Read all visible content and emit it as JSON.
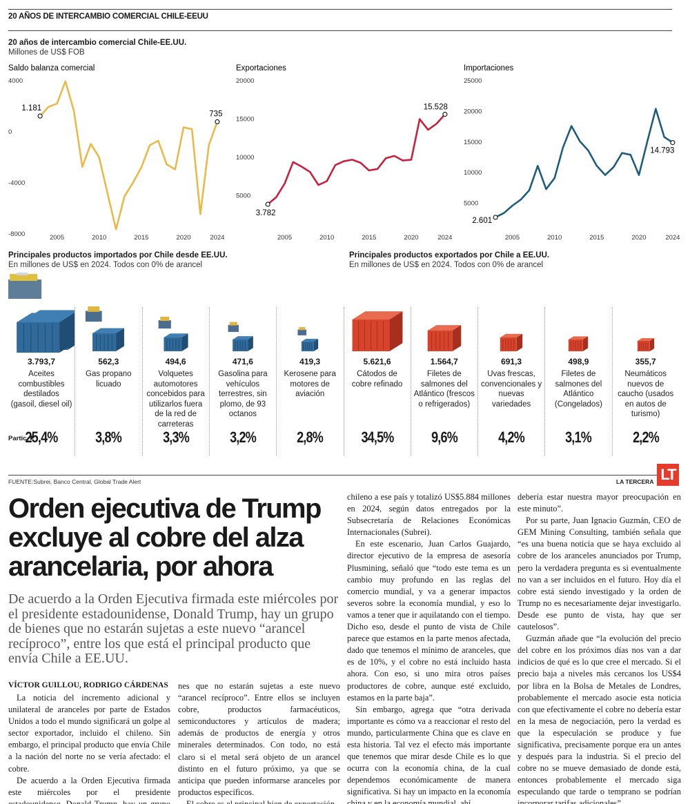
{
  "header": {
    "section": "20 AÑOS DE INTERCAMBIO COMERCIAL CHILE-EEUU",
    "title": "20 años de intercambio comercial Chile-EE.UU.",
    "subtitle": "Millones de US$ FOB"
  },
  "chart_data": [
    {
      "type": "line",
      "title": "Saldo balanza comercial",
      "x": [
        2003,
        2004,
        2005,
        2006,
        2007,
        2008,
        2009,
        2010,
        2011,
        2012,
        2013,
        2014,
        2015,
        2016,
        2017,
        2018,
        2019,
        2020,
        2021,
        2022,
        2023,
        2024
      ],
      "series": [
        {
          "color": "#e9b949",
          "values": [
            1181,
            1900,
            2150,
            3900,
            1600,
            -2800,
            -1000,
            -2050,
            -4900,
            -7700,
            -5100,
            -4050,
            -2850,
            -1100,
            -750,
            -2600,
            -3000,
            300,
            150,
            -6500,
            -1100,
            735
          ],
          "value_labels": [
            "1.181",
            null,
            null,
            null,
            null,
            null,
            null,
            null,
            null,
            null,
            null,
            null,
            null,
            null,
            null,
            null,
            null,
            null,
            null,
            null,
            null,
            "735"
          ]
        }
      ],
      "xlim": [
        2002.5,
        2024.5
      ],
      "xticks": [
        2005,
        2010,
        2015,
        2020,
        2024
      ],
      "ylim": [
        -8000,
        4000
      ],
      "yticks": [
        -8000,
        -4000,
        0,
        4000
      ]
    },
    {
      "type": "line",
      "title": "Exportaciones",
      "x": [
        2003,
        2004,
        2005,
        2006,
        2007,
        2008,
        2009,
        2010,
        2011,
        2012,
        2013,
        2014,
        2015,
        2016,
        2017,
        2018,
        2019,
        2020,
        2021,
        2022,
        2023,
        2024
      ],
      "series": [
        {
          "color": "#c8203f",
          "values": [
            3782,
            4700,
            6500,
            9300,
            8700,
            8000,
            6300,
            6800,
            8900,
            9400,
            9600,
            9200,
            8200,
            8400,
            9800,
            10100,
            9500,
            9600,
            14900,
            13500,
            14300,
            15528
          ],
          "value_labels": [
            "3.782",
            null,
            null,
            null,
            null,
            null,
            null,
            null,
            null,
            null,
            null,
            null,
            null,
            null,
            null,
            null,
            null,
            null,
            null,
            null,
            null,
            "15.528"
          ]
        }
      ],
      "xlim": [
        2002.5,
        2024.5
      ],
      "xticks": [
        2005,
        2010,
        2015,
        2020,
        2024
      ],
      "ylim": [
        0,
        20000
      ],
      "yticks": [
        5000,
        10000,
        15000,
        20000
      ]
    },
    {
      "type": "line",
      "title": "Importaciones",
      "x": [
        2003,
        2004,
        2005,
        2006,
        2007,
        2008,
        2009,
        2010,
        2011,
        2012,
        2013,
        2014,
        2015,
        2016,
        2017,
        2018,
        2019,
        2020,
        2021,
        2022,
        2023,
        2024
      ],
      "series": [
        {
          "color": "#1d5c7a",
          "values": [
            2601,
            3300,
            4500,
            5500,
            7000,
            11000,
            7200,
            9000,
            14000,
            17500,
            15000,
            13500,
            11000,
            9500,
            10800,
            13100,
            12800,
            9500,
            15000,
            20300,
            15700,
            14793
          ],
          "value_labels": [
            "2.601",
            null,
            null,
            null,
            null,
            null,
            null,
            null,
            null,
            null,
            null,
            null,
            null,
            null,
            null,
            null,
            null,
            null,
            null,
            null,
            null,
            "14.793"
          ]
        }
      ],
      "xlim": [
        2002.5,
        2024.5
      ],
      "xticks": [
        2005,
        2010,
        2015,
        2020,
        2024
      ],
      "ylim": [
        0,
        25000
      ],
      "yticks": [
        5000,
        10000,
        15000,
        20000,
        25000
      ]
    }
  ],
  "imports": {
    "title": "Principales productos importados por Chile desde EE.UU.",
    "subtitle": "En millones de US$ en 2024. Todos con 0% de arancel",
    "items": [
      {
        "value": "3.793,7",
        "name": "Aceites combustibles destilados (gasoil, diesel oil)",
        "share": "25,4%"
      },
      {
        "value": "562,3",
        "name": "Gas propano licuado",
        "share": "3,8%"
      },
      {
        "value": "494,6",
        "name": "Volquetes automotores concebidos para utilizarlos fuera de la red de carreteras",
        "share": "3,3%"
      },
      {
        "value": "471,6",
        "name": "Gasolina para vehículos terrestres, sin plomo, de 93 octanos",
        "share": "3,2%"
      },
      {
        "value": "419,3",
        "name": "Kerosene para motores de aviación",
        "share": "2,8%"
      }
    ]
  },
  "exports": {
    "title": "Principales productos exportados por Chile a EE.UU.",
    "subtitle": "En millones de US$ en 2024. Todos con 0% de arancel",
    "items": [
      {
        "value": "5.621,6",
        "name": "Cátodos de cobre refinado",
        "share": "34,5%"
      },
      {
        "value": "1.564,7",
        "name": "Filetes de salmones del Atlántico (frescos o refrigerados)",
        "share": "9,6%"
      },
      {
        "value": "691,3",
        "name": "Uvas frescas, convencionales y nuevas variedades",
        "share": "4,2%"
      },
      {
        "value": "498,9",
        "name": "Filetes de salmones del Atlántico (Congelados)",
        "share": "3,1%"
      },
      {
        "value": "355,7",
        "name": "Neumáticos nuevos de caucho (usados en autos de turismo)",
        "share": "2,2%"
      }
    ]
  },
  "partic_label": "Partic.",
  "footer": {
    "source": "FUENTE:Subrei, Banco Central, Global Trade Alert",
    "brand": "LA TERCERA",
    "logo": "LT"
  },
  "article": {
    "headline": "Orden ejecutiva de Trump excluye al cobre del alza arancelaria, por ahora",
    "lede": "De acuerdo a la Orden Ejecutiva firmada este miércoles por el presidente estadounidense, Donald Trump, hay un grupo de bienes que no estarán sujetas a este nuevo “arancel recíproco”, entre los que está el principal producto que envía Chile a EE.UU.",
    "byline": "VÍCTOR GUILLOU, RODRIGO CÁRDENAS",
    "columns": [
      [
        "La noticia del incremento adicional y unilateral de aranceles por parte de Estados Unidos a todo el mundo significará un golpe al sector exportador, incluido el chileno. Sin embargo, el principal producto que envía Chile a la nación del norte no se vería afectado: el cobre.",
        "De acuerdo a la Orden Ejecutiva firmada este miércoles por el presidente estadounidense, Donald Trump, hay un grupo de bie-"
      ],
      [
        "nes que no estarán sujetas a este nuevo “arancel recíproco”. Entre ellos se incluyen cobre, productos farmacéuticos, semiconductores y artículos de madera; además de productos de energía y otros minerales determinados. Con todo, no está claro si el metal será objeto de un arancel distinto en el futuro próximo, ya que se anticipa que pueden informarse aranceles por productos específicos.",
        "El cobre es el principal bien de exportación"
      ],
      [
        "chileno a ese país y totalizó US$5.884 millones en 2024, según datos entregados por la Subsecretaría de Relaciones Económicas Internacionales (Subrei).",
        "En este escenario, Juan Carlos Guajardo, director ejecutivo de la empresa de asesoría Plusmining, señaló que “todo este tema es un cambio muy profundo en las reglas del comercio mundial, y va a generar impactos severos sobre la economía mundial, y eso lo vamos a tener que ir aquilatando con el tiempo. Dicho eso, desde el punto de vista de Chile parece que estamos en la parte menos afectada, dado que tenemos el mínimo de aranceles, que es de 10%, y el cobre no está incluido hasta ahora. Con eso, si uno mira otros países productores de cobre, aunque esté excluido, estamos en la parte baja”.",
        "Sin embargo, agrega que “otra derivada importante es cómo va a reaccionar el resto del mundo, particularmente China que es clave en esta historia. Tal vez el efecto más importante que tenemos que mirar desde Chile es lo que ocurra con la economía china, de la cual dependemos económicamente de manera significativa. Si hay un impacto en la economía china y en la economía mundial, ahí"
      ],
      [
        "debería estar nuestra mayor preocupación en este minuto”.",
        "Por su parte, Juan Ignacio Guzmán, CEO de GEM Mining Consulting, también señala que “es una buena noticia que se haya excluido al cobre de los aranceles anunciados por Trump, pero la verdadera pregunta es si eventualmente no van a ser incluidos en el futuro. Hoy día el cobre está siendo investigado y la orden de Trump no es necesariamente dejar investigarlo. Desde ese punto de vista, hay que ser cautelosos”.",
        "Guzmán añade que “la evolución del precio del cobre en los próximos días nos van a dar indicios de qué es lo que cree el mercado. Si el precio baja a niveles más cercanos los US$4 por libra en la Bolsa de Metales de Londres, probablemente el mercado asocie esta noticia con que efectivamente el cobre no debería estar en la mesa de negociación, pero la verdad es que la especulación se produce y fue significativa, precisamente porque era un antes y después para la industria. Si el precio del cobre no se mueve demasiado de donde está, entonces probablemente el mercado siga especulando que tarde o temprano se podrían incorporar tarifas adicionales”."
      ]
    ]
  }
}
